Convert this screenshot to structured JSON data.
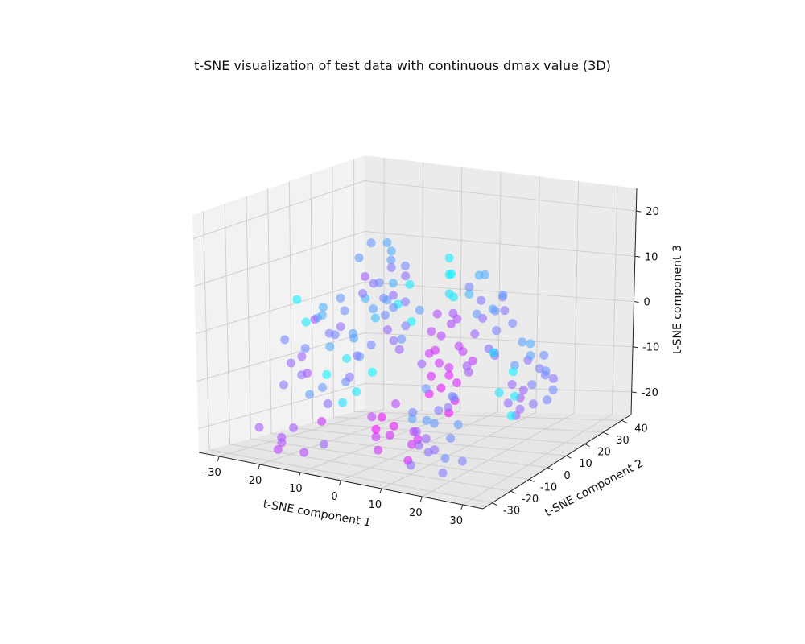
{
  "chart_data": {
    "type": "scatter",
    "title": "t-SNE visualization of test data with continuous dmax value (3D)",
    "xlabel": "t-SNE component 1",
    "ylabel": "t-SNE component 2",
    "zlabel": "t-SNE component 3",
    "xlim": [
      -35,
      35
    ],
    "ylim": [
      -35,
      45
    ],
    "zlim": [
      -25,
      25
    ],
    "x_ticks": [
      -30,
      -20,
      -10,
      0,
      10,
      20,
      30
    ],
    "y_ticks": [
      -30,
      -20,
      -10,
      0,
      10,
      20,
      30,
      40
    ],
    "z_ticks": [
      -20,
      -10,
      0,
      10,
      20
    ],
    "grid": true,
    "colormap": "cool",
    "point_color_range": [
      "#00ffff",
      "#ff00ff"
    ],
    "point_alpha": 0.6,
    "points_note": "approximately 500 points in three clusters",
    "points": [
      [
        -24,
        -6,
        -11,
        0.55
      ],
      [
        -22,
        -8,
        -5,
        0.45
      ],
      [
        -26,
        -2,
        -8,
        0.62
      ],
      [
        -20,
        -10,
        -14,
        0.38
      ],
      [
        -18,
        -4,
        -2,
        0.51
      ],
      [
        -21,
        2,
        -6,
        0.33
      ],
      [
        -25,
        -12,
        -3,
        0.48
      ],
      [
        -17,
        -7,
        -16,
        0.57
      ],
      [
        -23,
        0,
        0,
        0.29
      ],
      [
        -19,
        -13,
        -9,
        0.66
      ],
      [
        -15,
        -2,
        -12,
        0.43
      ],
      [
        -27,
        -9,
        -13,
        0.52
      ],
      [
        -16,
        4,
        -4,
        0.37
      ],
      [
        -22,
        -15,
        -7,
        0.59
      ],
      [
        -14,
        -9,
        -1,
        0.47
      ],
      [
        -20,
        -3,
        3,
        0.31
      ],
      [
        -12,
        -6,
        -10,
        0.55
      ],
      [
        -24,
        4,
        -15,
        0.41
      ],
      [
        -18,
        -11,
        2,
        0.61
      ],
      [
        -13,
        1,
        -7,
        0.36
      ],
      [
        -10,
        5,
        8,
        0.45
      ],
      [
        -12,
        2,
        5,
        0.28
      ],
      [
        -8,
        7,
        11,
        0.52
      ],
      [
        -14,
        3,
        13,
        0.39
      ],
      [
        -6,
        4,
        6,
        0.58
      ],
      [
        -9,
        9,
        14,
        0.33
      ],
      [
        -11,
        0,
        10,
        0.63
      ],
      [
        -7,
        6,
        3,
        0.42
      ],
      [
        -5,
        2,
        9,
        0.3
      ],
      [
        -13,
        8,
        7,
        0.55
      ],
      [
        -4,
        6,
        12,
        0.47
      ],
      [
        -10,
        3,
        1,
        0.25
      ],
      [
        -8,
        -2,
        4,
        0.36
      ],
      [
        -6,
        10,
        9,
        0.57
      ],
      [
        -12,
        5,
        16,
        0.41
      ],
      [
        -3,
        4,
        5,
        0.51
      ],
      [
        -9,
        7,
        -2,
        0.6
      ],
      [
        -5,
        1,
        14,
        0.38
      ],
      [
        -11,
        9,
        4,
        0.49
      ],
      [
        -7,
        3,
        17,
        0.34
      ],
      [
        2,
        12,
        -3,
        0.72
      ],
      [
        5,
        10,
        -9,
        0.81
      ],
      [
        0,
        14,
        1,
        0.68
      ],
      [
        4,
        8,
        -13,
        0.9
      ],
      [
        7,
        13,
        -6,
        0.76
      ],
      [
        1,
        9,
        -11,
        0.85
      ],
      [
        3,
        15,
        -1,
        0.7
      ],
      [
        6,
        11,
        -16,
        0.95
      ],
      [
        -1,
        12,
        -7,
        0.79
      ],
      [
        8,
        9,
        -4,
        0.74
      ],
      [
        2,
        16,
        -12,
        0.88
      ],
      [
        5,
        12,
        2,
        0.66
      ],
      [
        0,
        10,
        -15,
        0.92
      ],
      [
        9,
        14,
        -8,
        0.77
      ],
      [
        3,
        7,
        -5,
        0.83
      ],
      [
        -2,
        15,
        -3,
        0.71
      ],
      [
        6,
        8,
        -18,
        0.97
      ],
      [
        1,
        13,
        -9,
        0.8
      ],
      [
        4,
        16,
        0,
        0.69
      ],
      [
        7,
        10,
        -12,
        0.86
      ],
      [
        12,
        10,
        3,
        0.4
      ],
      [
        15,
        6,
        7,
        0.52
      ],
      [
        10,
        13,
        -2,
        0.61
      ],
      [
        17,
        8,
        5,
        0.35
      ],
      [
        13,
        4,
        10,
        0.47
      ],
      [
        11,
        15,
        1,
        0.58
      ],
      [
        16,
        11,
        -5,
        0.44
      ],
      [
        14,
        7,
        12,
        0.3
      ],
      [
        18,
        12,
        4,
        0.55
      ],
      [
        12,
        5,
        -7,
        0.63
      ],
      [
        19,
        9,
        8,
        0.38
      ],
      [
        15,
        14,
        -1,
        0.49
      ],
      [
        20,
        3,
        6,
        0.42
      ],
      [
        13,
        12,
        11,
        0.33
      ],
      [
        17,
        6,
        -3,
        0.57
      ],
      [
        21,
        10,
        2,
        0.46
      ],
      [
        14,
        2,
        9,
        0.27
      ],
      [
        16,
        15,
        6,
        0.51
      ],
      [
        11,
        8,
        -9,
        0.65
      ],
      [
        19,
        5,
        -4,
        0.53
      ],
      [
        24,
        12,
        -6,
        0.56
      ],
      [
        27,
        8,
        -10,
        0.48
      ],
      [
        22,
        14,
        -13,
        0.61
      ],
      [
        29,
        10,
        -4,
        0.44
      ],
      [
        25,
        6,
        -15,
        0.58
      ],
      [
        23,
        11,
        -2,
        0.37
      ],
      [
        28,
        13,
        -9,
        0.52
      ],
      [
        26,
        4,
        -12,
        0.65
      ],
      [
        30,
        9,
        -7,
        0.42
      ],
      [
        24,
        15,
        -16,
        0.55
      ],
      [
        27,
        7,
        -1,
        0.33
      ],
      [
        21,
        10,
        -11,
        0.6
      ],
      [
        29,
        12,
        -14,
        0.47
      ],
      [
        25,
        3,
        -5,
        0.39
      ],
      [
        31,
        11,
        -9,
        0.54
      ],
      [
        23,
        8,
        -17,
        0.62
      ],
      [
        28,
        5,
        -3,
        0.36
      ],
      [
        26,
        14,
        -8,
        0.5
      ],
      [
        22,
        6,
        -14,
        0.57
      ],
      [
        30,
        13,
        -12,
        0.45
      ],
      [
        15,
        -18,
        -14,
        0.41
      ],
      [
        18,
        -22,
        -10,
        0.52
      ],
      [
        12,
        -16,
        -18,
        0.6
      ],
      [
        20,
        -20,
        -16,
        0.46
      ],
      [
        16,
        -24,
        -12,
        0.38
      ],
      [
        14,
        -19,
        -20,
        0.55
      ],
      [
        19,
        -17,
        -8,
        0.49
      ],
      [
        13,
        -23,
        -15,
        0.63
      ],
      [
        21,
        -25,
        -19,
        0.44
      ],
      [
        17,
        -15,
        -11,
        0.57
      ],
      [
        11,
        -21,
        -13,
        0.35
      ],
      [
        22,
        -18,
        -21,
        0.5
      ],
      [
        15,
        -26,
        -17,
        0.62
      ],
      [
        18,
        -14,
        -9,
        0.43
      ],
      [
        12,
        -24,
        -22,
        0.56
      ],
      [
        20,
        -16,
        -14,
        0.39
      ],
      [
        16,
        -20,
        -19,
        0.58
      ],
      [
        14,
        -27,
        -10,
        0.47
      ],
      [
        19,
        -22,
        -23,
        0.53
      ],
      [
        13,
        -18,
        -7,
        0.4
      ],
      [
        -20,
        -24,
        -22,
        0.7
      ],
      [
        -16,
        -26,
        -18,
        0.64
      ],
      [
        -22,
        -22,
        -24,
        0.75
      ],
      [
        -18,
        -28,
        -20,
        0.68
      ],
      [
        -14,
        -25,
        -23,
        0.72
      ],
      [
        -12,
        -20,
        -17,
        0.8
      ],
      [
        -10,
        -23,
        -21,
        0.62
      ],
      [
        -24,
        -27,
        -19,
        0.66
      ],
      [
        0,
        -10,
        -20,
        0.85
      ],
      [
        3,
        -14,
        -17,
        0.9
      ],
      [
        -2,
        -12,
        -23,
        0.82
      ],
      [
        5,
        -8,
        -19,
        0.76
      ],
      [
        1,
        -16,
        -15,
        0.93
      ],
      [
        -4,
        -9,
        -21,
        0.79
      ],
      [
        6,
        -13,
        -24,
        0.88
      ],
      [
        2,
        -11,
        -13,
        0.72
      ],
      [
        -1,
        -15,
        -18,
        0.96
      ],
      [
        4,
        -7,
        -22,
        0.81
      ],
      [
        -3,
        -13,
        -16,
        0.74
      ],
      [
        7,
        -10,
        -20,
        0.86
      ],
      [
        -25,
        8,
        -13,
        0.05
      ],
      [
        -22,
        12,
        -10,
        0.1
      ],
      [
        -18,
        9,
        -16,
        0.08
      ],
      [
        -15,
        11,
        -12,
        0.03
      ],
      [
        -20,
        6,
        -18,
        0.12
      ],
      [
        -10,
        14,
        2,
        0.06
      ],
      [
        -8,
        16,
        6,
        0.09
      ],
      [
        -6,
        13,
        -1,
        0.04
      ],
      [
        8,
        4,
        12,
        0.07
      ],
      [
        10,
        0,
        9,
        0.11
      ],
      [
        12,
        -3,
        14,
        0.05
      ],
      [
        14,
        -6,
        10,
        0.1
      ],
      [
        9,
        2,
        16,
        0.08
      ],
      [
        27,
        -2,
        -5,
        0.06
      ],
      [
        25,
        -5,
        -9,
        0.09
      ],
      [
        29,
        -7,
        -13,
        0.04
      ],
      [
        23,
        -4,
        -1,
        0.12
      ],
      [
        26,
        1,
        -11,
        0.07
      ],
      [
        -28,
        4,
        -2,
        0.08
      ],
      [
        -26,
        -4,
        4,
        0.05
      ],
      [
        -5,
        -18,
        2,
        0.35
      ],
      [
        -8,
        -16,
        6,
        0.44
      ],
      [
        -3,
        -20,
        -2,
        0.52
      ],
      [
        -10,
        -14,
        8,
        0.4
      ],
      [
        -6,
        -22,
        4,
        0.58
      ],
      [
        -1,
        -17,
        0,
        0.47
      ],
      [
        -12,
        -19,
        5,
        0.33
      ],
      [
        -4,
        -15,
        10,
        0.55
      ],
      [
        6,
        -16,
        2,
        0.42
      ],
      [
        9,
        -20,
        6,
        0.5
      ],
      [
        4,
        -13,
        -1,
        0.61
      ],
      [
        11,
        -17,
        9,
        0.38
      ],
      [
        7,
        -22,
        3,
        0.56
      ],
      [
        3,
        -18,
        7,
        0.45
      ],
      [
        10,
        -14,
        -3,
        0.63
      ],
      [
        5,
        -21,
        11,
        0.36
      ]
    ]
  }
}
